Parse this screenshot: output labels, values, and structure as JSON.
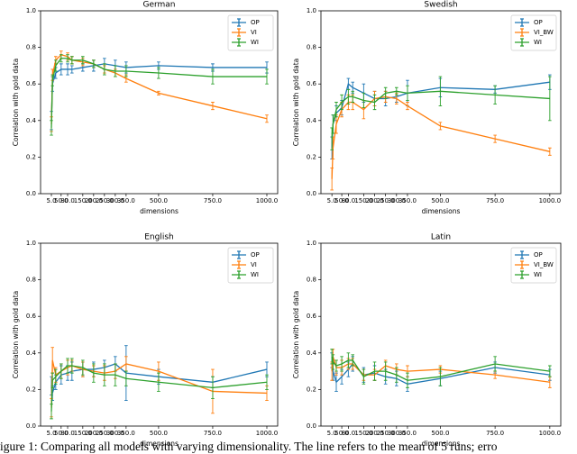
{
  "chart_data": [
    {
      "type": "line",
      "title": "German",
      "xlabel": "dimensions",
      "ylabel": "Correlation with gold data",
      "x": [
        5,
        10,
        25,
        50,
        80,
        100,
        150,
        200,
        250,
        300,
        350,
        500,
        750,
        1000
      ],
      "xlim": [
        -45,
        1050
      ],
      "xticks": [
        5,
        50,
        80,
        150,
        200,
        250,
        300,
        350,
        500,
        750,
        1000
      ],
      "ylim": [
        0,
        1
      ],
      "yticks": [
        0.0,
        0.2,
        0.4,
        0.6,
        0.8,
        1.0
      ],
      "legend": "upper right",
      "series": [
        {
          "name": "OP",
          "color": "#1f77b4",
          "values": [
            0.4,
            0.6,
            0.66,
            0.68,
            0.68,
            0.68,
            0.69,
            0.7,
            0.71,
            0.7,
            0.69,
            0.7,
            0.69,
            0.69
          ],
          "errors": [
            0.05,
            0.04,
            0.03,
            0.03,
            0.03,
            0.02,
            0.02,
            0.03,
            0.03,
            0.03,
            0.03,
            0.02,
            0.02,
            0.03
          ]
        },
        {
          "name": "VI",
          "color": "#ff7f0e",
          "values": [
            0.38,
            0.65,
            0.73,
            0.76,
            0.75,
            0.73,
            0.72,
            0.71,
            0.68,
            0.66,
            0.63,
            0.55,
            0.48,
            0.41
          ],
          "errors": [
            0.04,
            0.03,
            0.02,
            0.02,
            0.02,
            0.02,
            0.02,
            0.02,
            0.02,
            0.02,
            0.02,
            0.01,
            0.02,
            0.02
          ]
        },
        {
          "name": "WI",
          "color": "#2ca02c",
          "values": [
            0.36,
            0.62,
            0.7,
            0.74,
            0.74,
            0.73,
            0.73,
            0.71,
            0.68,
            0.67,
            0.67,
            0.66,
            0.64,
            0.64
          ],
          "errors": [
            0.04,
            0.03,
            0.03,
            0.02,
            0.02,
            0.02,
            0.02,
            0.02,
            0.03,
            0.03,
            0.03,
            0.03,
            0.04,
            0.04
          ]
        }
      ]
    },
    {
      "type": "line",
      "title": "Swedish",
      "xlabel": "dimensions",
      "ylabel": "Correlation with gold data",
      "x": [
        5,
        10,
        25,
        50,
        80,
        100,
        150,
        200,
        250,
        300,
        350,
        500,
        750,
        1000
      ],
      "xlim": [
        -45,
        1050
      ],
      "xticks": [
        5,
        50,
        80,
        150,
        200,
        250,
        300,
        350,
        500,
        750,
        1000
      ],
      "ylim": [
        0,
        1
      ],
      "yticks": [
        0.0,
        0.2,
        0.4,
        0.6,
        0.8,
        1.0
      ],
      "legend": "upper right",
      "series": [
        {
          "name": "OP",
          "color": "#1f77b4",
          "values": [
            0.25,
            0.38,
            0.44,
            0.47,
            0.6,
            0.58,
            0.55,
            0.52,
            0.52,
            0.53,
            0.55,
            0.58,
            0.57,
            0.61
          ],
          "errors": [
            0.06,
            0.05,
            0.04,
            0.04,
            0.03,
            0.03,
            0.05,
            0.04,
            0.04,
            0.03,
            0.07,
            0.05,
            0.02,
            0.04
          ]
        },
        {
          "name": "VI_BW",
          "color": "#ff7f0e",
          "values": [
            0.08,
            0.25,
            0.38,
            0.46,
            0.5,
            0.5,
            0.46,
            0.52,
            0.53,
            0.52,
            0.48,
            0.37,
            0.3,
            0.23
          ],
          "errors": [
            0.06,
            0.06,
            0.05,
            0.04,
            0.04,
            0.04,
            0.05,
            0.04,
            0.03,
            0.03,
            0.02,
            0.02,
            0.02,
            0.02
          ]
        },
        {
          "name": "WI",
          "color": "#2ca02c",
          "values": [
            0.3,
            0.38,
            0.46,
            0.5,
            0.53,
            0.53,
            0.51,
            0.5,
            0.55,
            0.56,
            0.55,
            0.56,
            0.54,
            0.52
          ],
          "errors": [
            0.06,
            0.05,
            0.04,
            0.04,
            0.04,
            0.03,
            0.04,
            0.04,
            0.03,
            0.02,
            0.04,
            0.08,
            0.05,
            0.12
          ]
        }
      ]
    },
    {
      "type": "line",
      "title": "English",
      "xlabel": "dimensions",
      "ylabel": "Correlation with gold data",
      "x": [
        5,
        10,
        25,
        50,
        80,
        100,
        150,
        200,
        250,
        300,
        350,
        500,
        750,
        1000
      ],
      "xlim": [
        -45,
        1050
      ],
      "xticks": [
        5,
        50,
        80,
        150,
        200,
        250,
        300,
        350,
        500,
        750,
        1000
      ],
      "ylim": [
        0,
        1
      ],
      "yticks": [
        0.0,
        0.2,
        0.4,
        0.6,
        0.8,
        1.0
      ],
      "legend": "upper right",
      "series": [
        {
          "name": "OP",
          "color": "#1f77b4",
          "values": [
            0.22,
            0.18,
            0.24,
            0.28,
            0.29,
            0.3,
            0.31,
            0.31,
            0.32,
            0.34,
            0.29,
            0.27,
            0.24,
            0.31
          ],
          "errors": [
            0.05,
            0.04,
            0.04,
            0.05,
            0.04,
            0.05,
            0.04,
            0.04,
            0.04,
            0.04,
            0.15,
            0.04,
            0.03,
            0.04
          ]
        },
        {
          "name": "VI",
          "color": "#ff7f0e",
          "values": [
            0.1,
            0.36,
            0.28,
            0.3,
            0.32,
            0.33,
            0.31,
            0.3,
            0.29,
            0.3,
            0.34,
            0.3,
            0.19,
            0.18
          ],
          "errors": [
            0.05,
            0.07,
            0.04,
            0.04,
            0.04,
            0.03,
            0.04,
            0.03,
            0.04,
            0.04,
            0.04,
            0.05,
            0.12,
            0.04
          ]
        },
        {
          "name": "WI",
          "color": "#2ca02c",
          "values": [
            0.08,
            0.25,
            0.27,
            0.3,
            0.33,
            0.33,
            0.32,
            0.29,
            0.28,
            0.28,
            0.26,
            0.24,
            0.21,
            0.24
          ],
          "errors": [
            0.04,
            0.04,
            0.04,
            0.04,
            0.04,
            0.04,
            0.04,
            0.05,
            0.06,
            0.06,
            0.04,
            0.05,
            0.06,
            0.04
          ]
        }
      ]
    },
    {
      "type": "line",
      "title": "Latin",
      "xlabel": "dimensions",
      "ylabel": "Correlation with gold data",
      "x": [
        5,
        10,
        25,
        50,
        80,
        100,
        150,
        200,
        250,
        300,
        350,
        500,
        750,
        1000
      ],
      "xlim": [
        -45,
        1050
      ],
      "xticks": [
        5,
        50,
        80,
        150,
        200,
        250,
        300,
        350,
        500,
        750,
        1000
      ],
      "ylim": [
        0,
        1
      ],
      "yticks": [
        0.0,
        0.2,
        0.4,
        0.6,
        0.8,
        1.0
      ],
      "legend": "upper right",
      "series": [
        {
          "name": "OP",
          "color": "#1f77b4",
          "values": [
            0.36,
            0.3,
            0.24,
            0.27,
            0.31,
            0.34,
            0.28,
            0.29,
            0.27,
            0.26,
            0.23,
            0.26,
            0.32,
            0.28
          ],
          "errors": [
            0.04,
            0.05,
            0.05,
            0.04,
            0.04,
            0.04,
            0.04,
            0.04,
            0.04,
            0.04,
            0.04,
            0.04,
            0.03,
            0.03
          ]
        },
        {
          "name": "VI_BW",
          "color": "#ff7f0e",
          "values": [
            0.3,
            0.38,
            0.32,
            0.32,
            0.34,
            0.34,
            0.28,
            0.28,
            0.33,
            0.31,
            0.3,
            0.31,
            0.28,
            0.24
          ],
          "errors": [
            0.05,
            0.04,
            0.04,
            0.04,
            0.03,
            0.03,
            0.03,
            0.03,
            0.03,
            0.03,
            0.03,
            0.02,
            0.02,
            0.03
          ]
        },
        {
          "name": "WI",
          "color": "#2ca02c",
          "values": [
            0.38,
            0.35,
            0.33,
            0.34,
            0.36,
            0.36,
            0.27,
            0.3,
            0.3,
            0.28,
            0.25,
            0.27,
            0.34,
            0.3
          ],
          "errors": [
            0.04,
            0.04,
            0.03,
            0.04,
            0.04,
            0.03,
            0.04,
            0.05,
            0.05,
            0.04,
            0.04,
            0.05,
            0.04,
            0.03
          ]
        }
      ]
    }
  ],
  "caption": "igure 1: Comparing all models with varying dimensionality. The line refers to the mean of 5 runs; erro"
}
